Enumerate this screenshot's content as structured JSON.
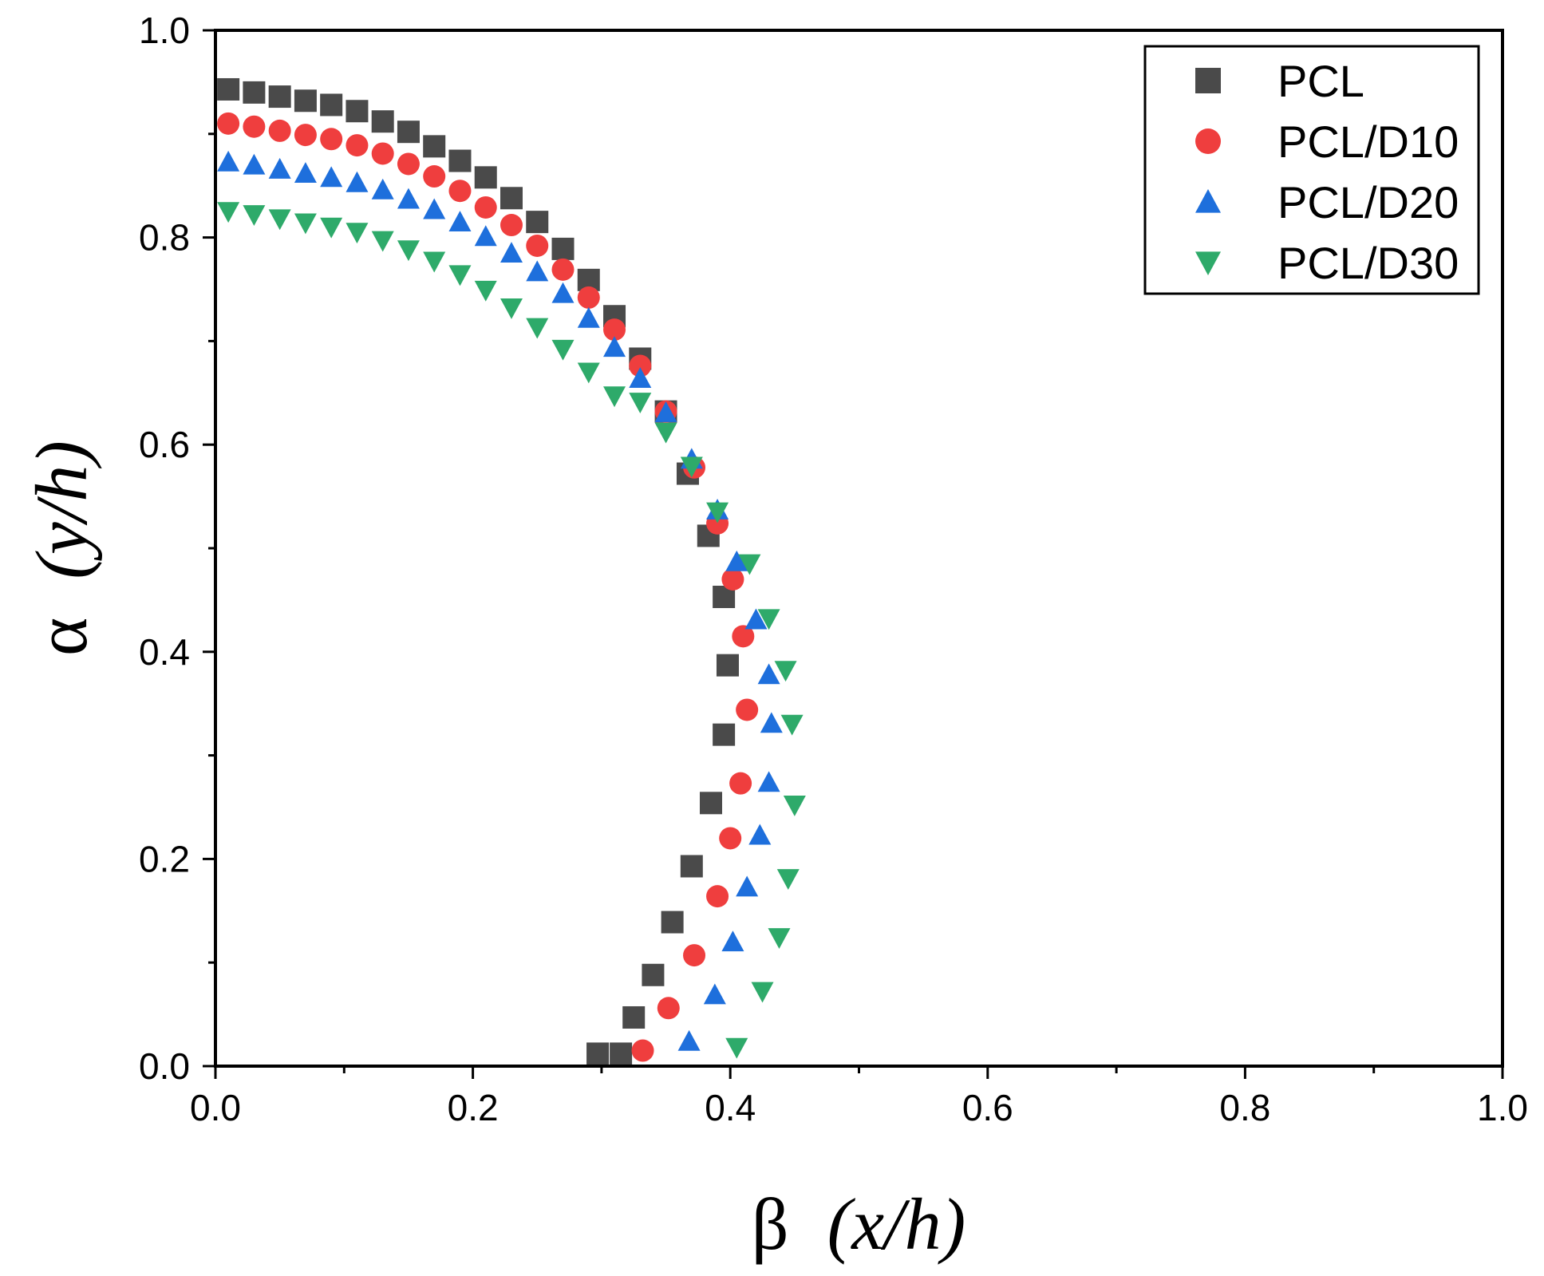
{
  "chart_data": {
    "type": "scatter",
    "xlabel": {
      "symbol": "β",
      "text": "(x/h)"
    },
    "ylabel": {
      "symbol": "α",
      "text": "(y/h)"
    },
    "xlim": [
      0,
      1.0
    ],
    "ylim": [
      0,
      1.0
    ],
    "xticks": [
      "0.0",
      "0.2",
      "0.4",
      "0.6",
      "0.8",
      "1.0"
    ],
    "yticks": [
      "0.0",
      "0.2",
      "0.4",
      "0.6",
      "0.8",
      "1.0"
    ],
    "grid": false,
    "legend_position": "top-right",
    "series": [
      {
        "name": "PCL",
        "marker": "square",
        "color": "#4a4a4a",
        "x": [
          0.01,
          0.03,
          0.05,
          0.07,
          0.09,
          0.11,
          0.13,
          0.15,
          0.17,
          0.19,
          0.21,
          0.23,
          0.25,
          0.27,
          0.29,
          0.31,
          0.33,
          0.35,
          0.367,
          0.383,
          0.395,
          0.398,
          0.395,
          0.385,
          0.37,
          0.355,
          0.34,
          0.325,
          0.315,
          0.297
        ],
        "y": [
          0.943,
          0.94,
          0.936,
          0.932,
          0.928,
          0.922,
          0.912,
          0.902,
          0.888,
          0.874,
          0.858,
          0.838,
          0.815,
          0.789,
          0.759,
          0.724,
          0.683,
          0.632,
          0.572,
          0.512,
          0.453,
          0.387,
          0.32,
          0.254,
          0.193,
          0.139,
          0.088,
          0.047,
          0.012,
          0.012
        ]
      },
      {
        "name": "PCL/D10",
        "marker": "circle",
        "color": "#ef3e3e",
        "x": [
          0.01,
          0.03,
          0.05,
          0.07,
          0.09,
          0.11,
          0.13,
          0.15,
          0.17,
          0.19,
          0.21,
          0.23,
          0.25,
          0.27,
          0.29,
          0.31,
          0.33,
          0.35,
          0.372,
          0.39,
          0.402,
          0.41,
          0.413,
          0.408,
          0.4,
          0.39,
          0.372,
          0.352,
          0.332
        ],
        "y": [
          0.91,
          0.907,
          0.903,
          0.899,
          0.895,
          0.889,
          0.881,
          0.871,
          0.859,
          0.845,
          0.829,
          0.812,
          0.792,
          0.769,
          0.742,
          0.711,
          0.676,
          0.632,
          0.578,
          0.524,
          0.47,
          0.415,
          0.344,
          0.273,
          0.22,
          0.164,
          0.107,
          0.056,
          0.015
        ]
      },
      {
        "name": "PCL/D20",
        "marker": "triangle-up",
        "color": "#1e6fdc",
        "x": [
          0.01,
          0.03,
          0.05,
          0.07,
          0.09,
          0.11,
          0.13,
          0.15,
          0.17,
          0.19,
          0.21,
          0.23,
          0.25,
          0.27,
          0.29,
          0.31,
          0.33,
          0.35,
          0.37,
          0.39,
          0.405,
          0.42,
          0.43,
          0.432,
          0.43,
          0.423,
          0.413,
          0.402,
          0.388,
          0.368
        ],
        "y": [
          0.873,
          0.87,
          0.866,
          0.862,
          0.858,
          0.853,
          0.846,
          0.837,
          0.827,
          0.815,
          0.801,
          0.785,
          0.767,
          0.746,
          0.722,
          0.694,
          0.664,
          0.631,
          0.586,
          0.537,
          0.487,
          0.431,
          0.378,
          0.331,
          0.274,
          0.223,
          0.173,
          0.12,
          0.069,
          0.024
        ]
      },
      {
        "name": "PCL/D30",
        "marker": "triangle-down",
        "color": "#2eaa6a",
        "x": [
          0.01,
          0.03,
          0.05,
          0.07,
          0.09,
          0.11,
          0.13,
          0.15,
          0.17,
          0.19,
          0.21,
          0.23,
          0.25,
          0.27,
          0.29,
          0.31,
          0.33,
          0.35,
          0.37,
          0.39,
          0.415,
          0.43,
          0.443,
          0.448,
          0.45,
          0.445,
          0.438,
          0.425,
          0.405
        ],
        "y": [
          0.825,
          0.822,
          0.818,
          0.814,
          0.81,
          0.805,
          0.797,
          0.788,
          0.777,
          0.764,
          0.749,
          0.732,
          0.713,
          0.692,
          0.67,
          0.647,
          0.641,
          0.612,
          0.579,
          0.535,
          0.485,
          0.432,
          0.382,
          0.33,
          0.252,
          0.181,
          0.124,
          0.072,
          0.018
        ]
      }
    ]
  }
}
